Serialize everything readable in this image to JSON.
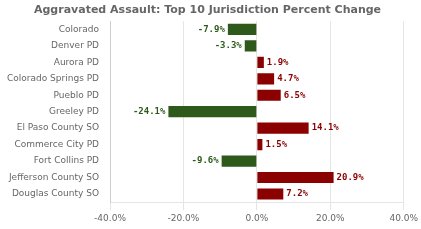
{
  "chart_data": {
    "type": "bar",
    "orientation": "horizontal",
    "title": "Aggravated Assault: Top 10 Jurisdiction Percent Change",
    "categories": [
      "Colorado",
      "Denver PD",
      "Aurora PD",
      "Colorado Springs PD",
      "Pueblo PD",
      "Greeley PD",
      "El Paso County SO",
      "Commerce City PD",
      "Fort Collins PD",
      "Jefferson County SO",
      "Douglas County SO"
    ],
    "values": [
      -7.9,
      -3.3,
      1.9,
      4.7,
      6.5,
      -24.1,
      14.1,
      1.5,
      -9.6,
      20.9,
      7.2
    ],
    "value_labels": [
      "-7.9%",
      "-3.3%",
      "1.9%",
      "4.7%",
      "6.5%",
      "-24.1%",
      "14.1%",
      "1.5%",
      "-9.6%",
      "20.9%",
      "7.2%"
    ],
    "colors": [
      "#2d5a1b",
      "#2d5a1b",
      "#8b0000",
      "#8b0000",
      "#8b0000",
      "#2d5a1b",
      "#8b0000",
      "#8b0000",
      "#2d5a1b",
      "#8b0000",
      "#8b0000"
    ],
    "xlim": [
      -40,
      40
    ],
    "xticks": [
      {
        "value": -40,
        "label": "-40.0%"
      },
      {
        "value": -20,
        "label": "-20.0%"
      },
      {
        "value": 0,
        "label": "0.0%"
      },
      {
        "value": 20,
        "label": "20.0%"
      },
      {
        "value": 40,
        "label": "40.0%"
      }
    ],
    "grid": true,
    "data_labels": true
  }
}
